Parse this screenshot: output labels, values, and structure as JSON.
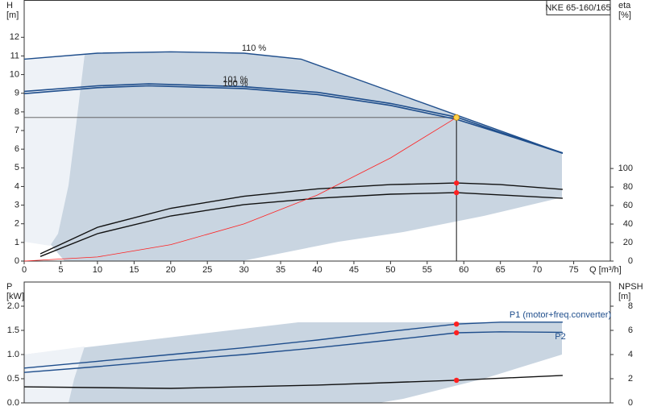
{
  "header": {
    "title": "NKE 65-160/165"
  },
  "chart_data": [
    {
      "type": "line",
      "ylabel": "H",
      "yunit": "[m]",
      "y2label": "eta",
      "y2unit": "[%]",
      "xlabel": "Q [m³/h]",
      "xlim": [
        0,
        80
      ],
      "xticks": [
        0,
        5,
        10,
        15,
        20,
        25,
        30,
        35,
        40,
        45,
        50,
        55,
        60,
        65,
        70,
        75
      ],
      "ylim": [
        0,
        14
      ],
      "yticks": [
        0,
        1,
        2,
        3,
        4,
        5,
        6,
        7,
        8,
        9,
        10,
        11,
        12
      ],
      "y2lim": [
        0,
        282
      ],
      "y2ticks": [
        0,
        20,
        40,
        60,
        80,
        100
      ],
      "grid": false,
      "duty_point": {
        "x": 59,
        "y": 7.7,
        "color": "#ffd24a"
      },
      "series": [
        {
          "name": "110 %",
          "color": "#1f4e8c",
          "x": [
            0,
            10,
            20,
            30,
            37.8,
            73.5
          ],
          "values": [
            10.83,
            11.15,
            11.22,
            11.15,
            10.83,
            5.78
          ]
        },
        {
          "name": "101 %",
          "color": "#1f4e8c",
          "x": [
            0,
            10,
            17,
            30,
            40,
            50,
            59,
            65,
            73.5
          ],
          "values": [
            9.1,
            9.4,
            9.5,
            9.35,
            9.05,
            8.45,
            7.72,
            6.9,
            5.8
          ]
        },
        {
          "name": "100 %",
          "color": "#1f4e8c",
          "x": [
            0,
            10,
            17,
            30,
            40,
            50,
            59,
            65,
            73.5
          ],
          "values": [
            8.98,
            9.3,
            9.4,
            9.25,
            8.93,
            8.35,
            7.6,
            6.86,
            5.78
          ]
        },
        {
          "color": "#111111",
          "axis": "y2",
          "x": [
            2.2,
            10,
            20,
            30,
            40,
            50,
            59,
            65,
            73.5
          ],
          "values": [
            7.8,
            36.5,
            57,
            70,
            78,
            82.6,
            84.3,
            82.6,
            77.4
          ]
        },
        {
          "color": "#111111",
          "axis": "y2",
          "x": [
            2.2,
            10,
            20,
            30,
            40,
            50,
            59,
            65,
            73.5
          ],
          "values": [
            5,
            29.6,
            48.7,
            61,
            67.8,
            72.2,
            73.9,
            71.5,
            67.8
          ]
        },
        {
          "color": "#ff2020",
          "x": [
            0,
            10,
            20,
            30,
            40,
            50,
            59
          ],
          "values": [
            0,
            0.22,
            0.88,
            1.99,
            3.54,
            5.53,
            7.7
          ]
        }
      ]
    },
    {
      "type": "line",
      "ylabel": "P",
      "yunit": "[kW]",
      "y2label": "NPSH",
      "y2unit": "[m]",
      "xlim": [
        0,
        80
      ],
      "ylim": [
        0,
        2.5
      ],
      "yticks": [
        {
          "value": 0,
          "label": "0.0"
        },
        0.5,
        {
          "value": 1,
          "label": "1.0"
        },
        1.5,
        {
          "value": 2,
          "label": "2.0"
        }
      ],
      "y2lim": [
        0,
        10
      ],
      "y2ticks": [
        0,
        2,
        4,
        6,
        8
      ],
      "duty_x": 59,
      "series": [
        {
          "name": "P1 (motor+freq.converter)",
          "color": "#1f4e8c",
          "x": [
            0,
            10,
            20,
            30,
            40,
            50,
            59,
            65,
            73.5
          ],
          "values": [
            0.72,
            0.86,
            1.0,
            1.14,
            1.3,
            1.48,
            1.63,
            1.67,
            1.67
          ]
        },
        {
          "name": "P2",
          "color": "#1f4e8c",
          "x": [
            0,
            10,
            20,
            30,
            40,
            50,
            59,
            65,
            73.5
          ],
          "values": [
            0.63,
            0.75,
            0.88,
            1.0,
            1.14,
            1.3,
            1.45,
            1.47,
            1.46
          ]
        },
        {
          "color": "#111111",
          "axis": "y2",
          "x": [
            0,
            20,
            40,
            59,
            73.5
          ],
          "values": [
            1.33,
            1.2,
            1.47,
            1.87,
            2.27
          ]
        }
      ]
    }
  ]
}
